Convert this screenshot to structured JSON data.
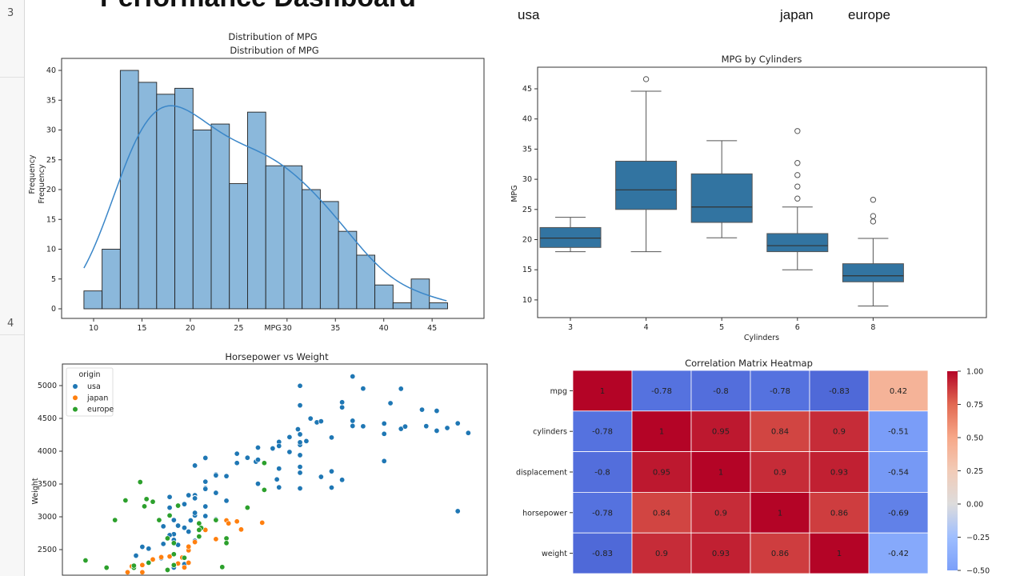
{
  "sheet": {
    "row_numbers": [
      "3",
      "4"
    ]
  },
  "dashboard": {
    "title": "Performance Dashboard",
    "legend_text": [
      "usa",
      "japan",
      "europe"
    ]
  },
  "colors": {
    "hist_fill": "#8bb8db",
    "kde": "#3a86c8",
    "box": "#3274a1",
    "usa": "#1f77b4",
    "japan": "#ff7f0e",
    "europe": "#2ca02c"
  },
  "chart_data": [
    {
      "type": "bar",
      "subtype": "histogram-with-kde",
      "title": "Distribution of MPG",
      "subtitle": "Distribution of MPG",
      "xlabel": "MPG",
      "ylabel": "Frequency",
      "bin_start": 9,
      "bin_end": 46.6,
      "values": [
        3,
        10,
        40,
        38,
        36,
        37,
        30,
        31,
        21,
        33,
        24,
        24,
        20,
        18,
        13,
        9,
        4,
        1,
        5,
        1
      ],
      "xticks": [
        10,
        15,
        20,
        25,
        30,
        35,
        40,
        45
      ],
      "yticks": [
        0,
        5,
        10,
        15,
        20,
        25,
        30,
        35,
        40
      ],
      "xlim": [
        7,
        48
      ],
      "ylim": [
        0,
        42
      ]
    },
    {
      "type": "box",
      "title": "MPG by Cylinders",
      "xlabel": "Cylinders",
      "ylabel": "MPG",
      "categories": [
        "3",
        "4",
        "5",
        "6",
        "8"
      ],
      "boxes": [
        {
          "min": 18,
          "q1": 18.7,
          "median": 20.25,
          "q3": 22,
          "max": 23.7,
          "outliers": []
        },
        {
          "min": 18,
          "q1": 25,
          "median": 28.25,
          "q3": 33,
          "max": 44.6,
          "outliers": [
            46.6
          ]
        },
        {
          "min": 20.3,
          "q1": 22.85,
          "median": 25.4,
          "q3": 30.9,
          "max": 36.4,
          "outliers": []
        },
        {
          "min": 15,
          "q1": 18,
          "median": 19,
          "q3": 21,
          "max": 25.4,
          "outliers": [
            38,
            32.7,
            30.7,
            28.8,
            26.8
          ]
        },
        {
          "min": 9,
          "q1": 13,
          "median": 14,
          "q3": 16,
          "max": 20.2,
          "outliers": [
            26.6,
            23.9,
            23
          ]
        }
      ],
      "yticks": [
        10,
        15,
        20,
        25,
        30,
        35,
        40,
        45
      ],
      "ylim": [
        7.2,
        48.6
      ]
    },
    {
      "type": "scatter",
      "title": "Horsepower vs Weight",
      "ylabel": "Weight",
      "legend_title": "origin",
      "legend_placement": "top-left",
      "yticks": [
        2500,
        3000,
        3500,
        4000,
        4500,
        5000
      ],
      "xlim": [
        37,
        239
      ],
      "ylim": [
        1600,
        5300
      ],
      "series": [
        {
          "name": "usa",
          "points": [
            [
              130,
              3504
            ],
            [
              165,
              3693
            ],
            [
              150,
              3436
            ],
            [
              150,
              3433
            ],
            [
              140,
              3449
            ],
            [
              198,
              4341
            ],
            [
              220,
              4354
            ],
            [
              215,
              4312
            ],
            [
              225,
              4425
            ],
            [
              190,
              3850
            ],
            [
              170,
              3563
            ],
            [
              160,
              3609
            ],
            [
              150,
              3761
            ],
            [
              225,
              3086
            ],
            [
              95,
              2833
            ],
            [
              97,
              2774
            ],
            [
              85,
              2587
            ],
            [
              90,
              2648
            ],
            [
              215,
              4615
            ],
            [
              200,
              4376
            ],
            [
              210,
              4382
            ],
            [
              193,
              4732
            ],
            [
              100,
              2634
            ],
            [
              105,
              3439
            ],
            [
              100,
              3329
            ],
            [
              88,
              3302
            ],
            [
              100,
              3288
            ],
            [
              165,
              4209
            ],
            [
              175,
              4464
            ],
            [
              153,
              4154
            ],
            [
              150,
              4096
            ],
            [
              180,
              4955
            ],
            [
              170,
              4746
            ],
            [
              175,
              5140
            ],
            [
              110,
              2962
            ],
            [
              72,
              2408
            ],
            [
              100,
              3282
            ],
            [
              88,
              3139
            ],
            [
              90,
              2123
            ],
            [
              95,
              2278
            ],
            [
              80,
              2126
            ],
            [
              90,
              2226
            ],
            [
              150,
              4997
            ],
            [
              140,
              4141
            ],
            [
              150,
              4257
            ],
            [
              158,
              4440
            ],
            [
              137,
              4042
            ],
            [
              150,
              4699
            ],
            [
              208,
              4633
            ],
            [
              155,
              4498
            ],
            [
              160,
              4456
            ],
            [
              190,
              4422
            ],
            [
              230,
              4278
            ],
            [
              149,
              4335
            ],
            [
              120,
              3962
            ],
            [
              145,
              3988
            ],
            [
              130,
              4055
            ],
            [
              150,
              4135
            ],
            [
              110,
              3645
            ],
            [
              105,
              3897
            ],
            [
              100,
              3781
            ],
            [
              129,
              3840
            ],
            [
              110,
              3632
            ],
            [
              84,
              2370
            ],
            [
              92,
              2572
            ],
            [
              110,
              2945
            ],
            [
              100,
              3021
            ],
            [
              105,
              3158
            ],
            [
              95,
              3193
            ],
            [
              98,
              2945
            ],
            [
              90,
              2735
            ],
            [
              97,
              3329
            ],
            [
              85,
              2855
            ],
            [
              88,
              2720
            ],
            [
              115,
              3245
            ],
            [
              105,
              3535
            ],
            [
              130,
              3870
            ],
            [
              140,
              3735
            ],
            [
              150,
              3940
            ],
            [
              180,
              4380
            ],
            [
              145,
              4215
            ],
            [
              170,
              4668
            ],
            [
              198,
              4952
            ],
            [
              140,
              4080
            ],
            [
              175,
              4385
            ],
            [
              150,
              3672
            ],
            [
              165,
              3445
            ],
            [
              190,
              4265
            ],
            [
              120,
              3820
            ],
            [
              125,
              3900
            ],
            [
              110,
              3365
            ],
            [
              105,
              3425
            ],
            [
              100,
              3060
            ],
            [
              75,
              2542
            ],
            [
              78,
              2515
            ],
            [
              90,
              2950
            ],
            [
              92,
              2865
            ],
            [
              115,
              3620
            ],
            [
              139,
              3570
            ],
            [
              105,
              3012
            ]
          ]
        },
        {
          "name": "japan",
          "points": [
            [
              95,
              2372
            ],
            [
              88,
              2130
            ],
            [
              97,
              2506
            ],
            [
              95,
              2228
            ],
            [
              97,
              2489
            ],
            [
              92,
              2288
            ],
            [
              110,
              2660
            ],
            [
              122,
              2807
            ],
            [
              132,
              2910
            ],
            [
              115,
              2945
            ],
            [
              97,
              2545
            ],
            [
              75,
              2155
            ],
            [
              100,
              2615
            ],
            [
              90,
              2265
            ],
            [
              88,
              2395
            ],
            [
              116,
              2900
            ],
            [
              120,
              2930
            ],
            [
              105,
              2800
            ],
            [
              94,
              2379
            ],
            [
              84,
              2385
            ],
            [
              97,
              2300
            ],
            [
              70,
              2245
            ],
            [
              75,
              2265
            ],
            [
              80,
              2350
            ],
            [
              68,
              2155
            ]
          ]
        },
        {
          "name": "europe",
          "points": [
            [
              87,
              2672
            ],
            [
              90,
              2430
            ],
            [
              95,
              2375
            ],
            [
              113,
              2234
            ],
            [
              90,
              2264
            ],
            [
              70,
              2130
            ],
            [
              76,
              2144
            ],
            [
              88,
              3020
            ],
            [
              115,
              2671
            ],
            [
              103,
              2830
            ],
            [
              102,
              2900
            ],
            [
              78,
              2300
            ],
            [
              110,
              2950
            ],
            [
              46,
              2110
            ],
            [
              71,
              2223
            ],
            [
              125,
              3140
            ],
            [
              133,
              3410
            ],
            [
              48,
              2335
            ],
            [
              58,
              2225
            ],
            [
              133,
              3820
            ],
            [
              76,
              3160
            ],
            [
              77,
              3270
            ],
            [
              80,
              3230
            ],
            [
              67,
              3250
            ],
            [
              62,
              2950
            ],
            [
              92,
              3170
            ],
            [
              74,
              3530
            ],
            [
              83,
              2950
            ],
            [
              71,
              2255
            ],
            [
              102,
              2800
            ],
            [
              87,
              2190
            ],
            [
              90,
              2600
            ],
            [
              102,
              2700
            ],
            [
              115,
              2600
            ]
          ]
        }
      ]
    },
    {
      "type": "heatmap",
      "title": "Correlation Matrix Heatmap",
      "row_labels": [
        "mpg",
        "cylinders",
        "displacement",
        "horsepower",
        "weight"
      ],
      "values": [
        [
          1,
          -0.78,
          -0.8,
          -0.78,
          -0.83,
          0.42
        ],
        [
          -0.78,
          1,
          0.95,
          0.84,
          0.9,
          -0.51
        ],
        [
          -0.8,
          0.95,
          1,
          0.9,
          0.93,
          -0.54
        ],
        [
          -0.78,
          0.84,
          0.9,
          1,
          0.86,
          -0.69
        ],
        [
          -0.83,
          0.9,
          0.93,
          0.86,
          1,
          -0.42
        ]
      ],
      "colormap": "coolwarm",
      "vmin": -1,
      "vmax": 1,
      "colorbar_ticks": [
        "1.00",
        "0.75",
        "0.50",
        "0.25",
        "0.00",
        "−0.25",
        "−0.50"
      ]
    }
  ]
}
